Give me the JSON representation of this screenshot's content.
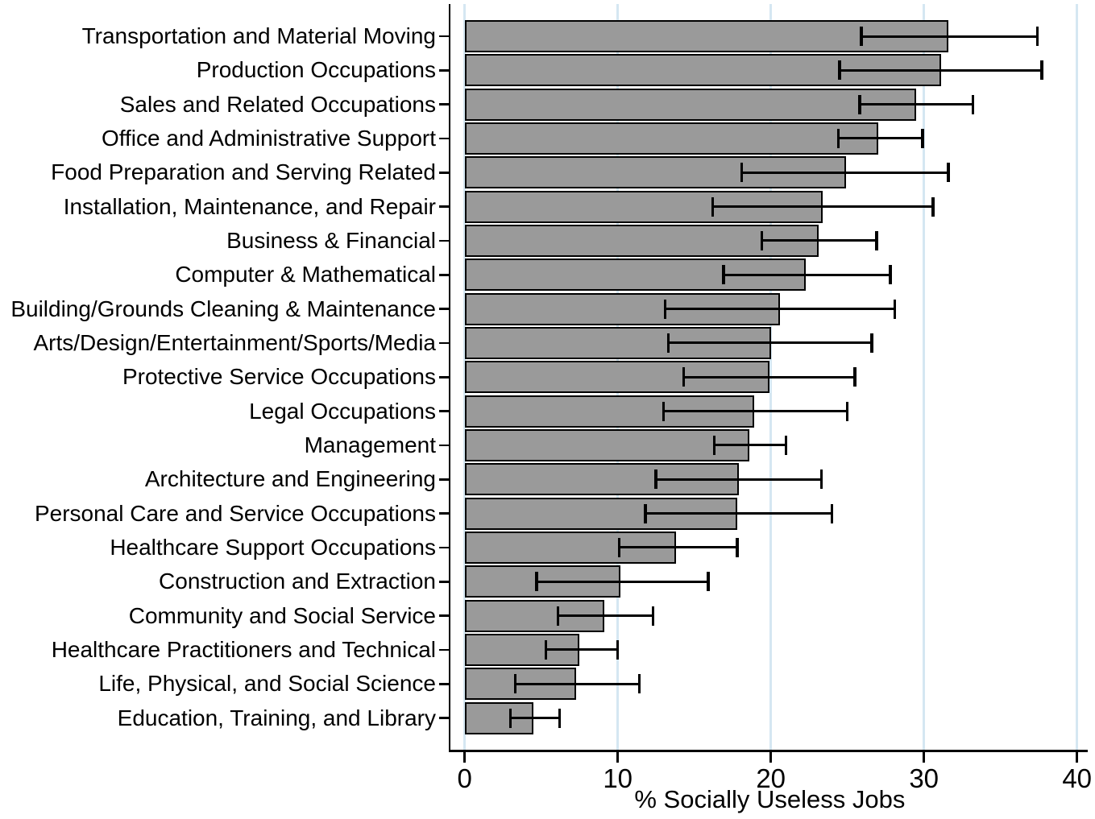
{
  "chart_data": {
    "type": "bar",
    "orientation": "horizontal",
    "title": "",
    "xlabel": "% Socially Useless Jobs",
    "ylabel": "",
    "xlim": [
      0,
      40
    ],
    "xticks": [
      0,
      10,
      20,
      30,
      40
    ],
    "grid": true,
    "legend": "none",
    "categories": [
      "Transportation and Material Moving",
      "Production Occupations",
      "Sales and Related Occupations",
      "Office and Administrative Support",
      "Food Preparation and Serving Related",
      "Installation, Maintenance, and Repair",
      "Business & Financial",
      "Computer & Mathematical",
      "Building/Grounds Cleaning & Maintenance",
      "Arts/Design/Entertainment/Sports/Media",
      "Protective Service Occupations",
      "Legal Occupations",
      "Management",
      "Architecture and Engineering",
      "Personal Care and Service Occupations",
      "Healthcare Support Occupations",
      "Construction and Extraction",
      "Community and Social Service",
      "Healthcare Practitioners and Technical",
      "Life, Physical, and Social Science",
      "Education, Training, and Library"
    ],
    "values": [
      31.6,
      31.1,
      29.5,
      27.0,
      24.9,
      23.4,
      23.1,
      22.3,
      20.6,
      20.0,
      19.9,
      18.9,
      18.6,
      17.9,
      17.8,
      13.8,
      10.2,
      9.1,
      7.5,
      7.3,
      4.5
    ],
    "ci_low": [
      25.9,
      24.5,
      25.8,
      24.4,
      18.1,
      16.2,
      19.4,
      16.9,
      13.1,
      13.3,
      14.3,
      13.0,
      16.3,
      12.5,
      11.8,
      10.1,
      4.7,
      6.1,
      5.3,
      3.3,
      3.0
    ],
    "ci_high": [
      37.4,
      37.7,
      33.2,
      29.9,
      31.6,
      30.6,
      26.9,
      27.8,
      28.1,
      26.6,
      25.5,
      25.0,
      21.0,
      23.3,
      24.0,
      17.8,
      15.9,
      12.3,
      10.0,
      11.4,
      6.2
    ],
    "colors": {
      "bar_fill": "#9a9a9a",
      "bar_border": "#000000",
      "error_bar": "#000000",
      "gridline": "#d5e7f2",
      "axis": "#000000",
      "text": "#000000",
      "background": "#ffffff"
    }
  }
}
